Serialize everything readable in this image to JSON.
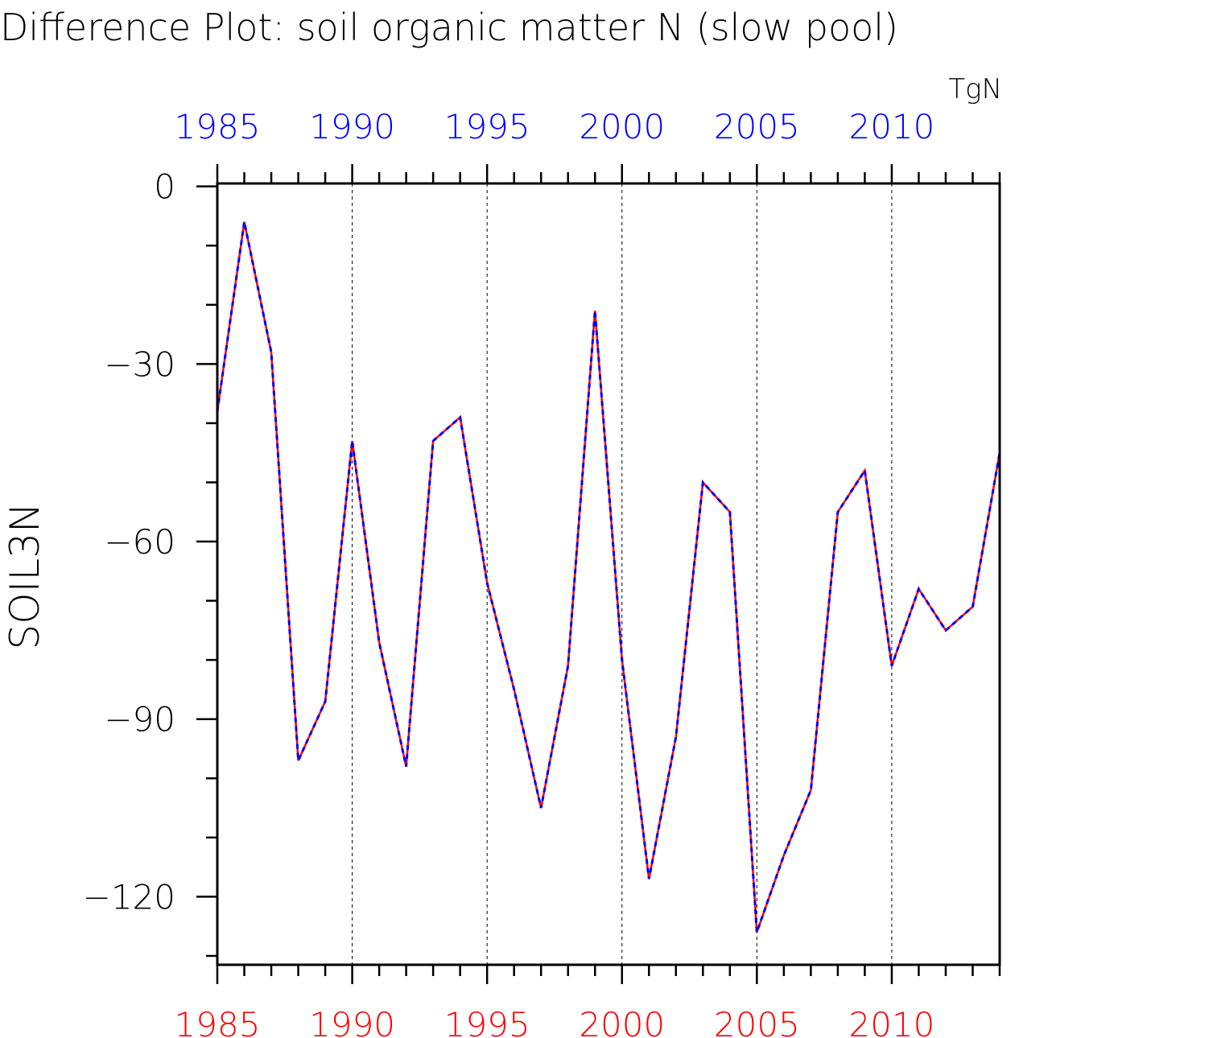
{
  "chart_data": {
    "type": "line",
    "title": "Difference Plot: soil organic matter N (slow pool)",
    "units": "TgN",
    "ylabel": "SOIL3N",
    "xlim": [
      1985,
      2014
    ],
    "ylim": [
      -131.5,
      0.5
    ],
    "x_major_ticks": [
      1985,
      1990,
      1995,
      2000,
      2005,
      2010
    ],
    "y_major_ticks": [
      0,
      -30,
      -60,
      -90,
      -120
    ],
    "y_tick_labels": [
      "0",
      "−30",
      "−60",
      "−90",
      "−120"
    ],
    "y_minor_ticks": [
      -10,
      -20,
      -40,
      -50,
      -70,
      -80,
      -100,
      -110,
      -130
    ],
    "grid": "vertical dashed at major x ticks",
    "colors": {
      "top_axis_labels": "#0000ff",
      "bottom_axis_labels": "#ff0000",
      "series_a": "#ff0000",
      "series_b": "#0000ff"
    },
    "x": [
      1985,
      1986,
      1987,
      1988,
      1989,
      1990,
      1991,
      1992,
      1993,
      1994,
      1995,
      1996,
      1997,
      1998,
      1999,
      2000,
      2001,
      2002,
      2003,
      2004,
      2005,
      2006,
      2007,
      2008,
      2009,
      2010,
      2011,
      2012,
      2013,
      2014
    ],
    "series": [
      {
        "style": "solid",
        "color": "#ff0000",
        "values": [
          -38,
          -6,
          -28,
          -97,
          -87,
          -43,
          -77,
          -98,
          -43,
          -39,
          -67,
          -85,
          -105,
          -81,
          -21,
          -80,
          -117,
          -93,
          -50,
          -55,
          -126,
          -113,
          -102,
          -55,
          -48,
          -81,
          -68,
          -75,
          -71,
          -45
        ]
      },
      {
        "style": "dashed",
        "color": "#0000ff",
        "values": [
          -38,
          -6,
          -28,
          -97,
          -87,
          -43,
          -77,
          -98,
          -43,
          -39,
          -67,
          -85,
          -105,
          -81,
          -21,
          -80,
          -117,
          -93,
          -50,
          -55,
          -126,
          -113,
          -102,
          -55,
          -48,
          -81,
          -68,
          -75,
          -71,
          -45
        ]
      }
    ]
  }
}
